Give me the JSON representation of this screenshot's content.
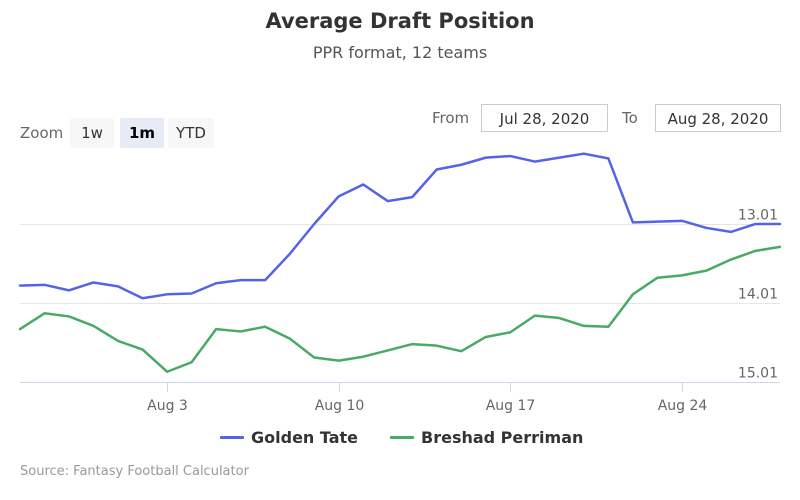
{
  "chart_data": {
    "type": "line",
    "title": "Average Draft Position",
    "subtitle": "PPR format, 12 teams",
    "y_reversed": true,
    "ylim": [
      12.2,
      15.01
    ],
    "y_ticks": [
      {
        "value": 13.01,
        "label": "13.01"
      },
      {
        "value": 14.01,
        "label": "14.01"
      },
      {
        "value": 15.01,
        "label": "15.01"
      }
    ],
    "x_ticks": [
      "Aug 3",
      "Aug 10",
      "Aug 17",
      "Aug 24"
    ],
    "x": [
      "Jul 28",
      "Jul 29",
      "Jul 30",
      "Jul 31",
      "Aug 1",
      "Aug 2",
      "Aug 3",
      "Aug 4",
      "Aug 5",
      "Aug 6",
      "Aug 7",
      "Aug 8",
      "Aug 9",
      "Aug 10",
      "Aug 11",
      "Aug 12",
      "Aug 13",
      "Aug 14",
      "Aug 15",
      "Aug 16",
      "Aug 17",
      "Aug 18",
      "Aug 19",
      "Aug 20",
      "Aug 21",
      "Aug 22",
      "Aug 23",
      "Aug 24",
      "Aug 25",
      "Aug 26",
      "Aug 27",
      "Aug 28"
    ],
    "series": [
      {
        "name": "Golden Tate",
        "color": "#5563e6",
        "values": [
          13.79,
          13.78,
          13.85,
          13.75,
          13.8,
          13.95,
          13.9,
          13.89,
          13.76,
          13.72,
          13.72,
          13.39,
          13.01,
          12.66,
          12.51,
          12.72,
          12.67,
          12.32,
          12.26,
          12.17,
          12.15,
          12.22,
          12.17,
          12.12,
          12.18,
          12.99,
          12.98,
          12.97,
          13.06,
          13.11,
          13.01,
          13.01
        ]
      },
      {
        "name": "Breshad Perriman",
        "color": "#49a965",
        "values": [
          14.34,
          14.14,
          14.18,
          14.3,
          14.49,
          14.6,
          14.88,
          14.76,
          14.34,
          14.37,
          14.31,
          14.46,
          14.7,
          14.74,
          14.69,
          14.61,
          14.53,
          14.55,
          14.62,
          14.44,
          14.38,
          14.17,
          14.2,
          14.3,
          14.31,
          13.9,
          13.69,
          13.66,
          13.6,
          13.46,
          13.35,
          13.3
        ]
      }
    ],
    "legend_position": "bottom",
    "grid": true
  },
  "range_selector": {
    "zoom_label": "Zoom",
    "buttons": [
      {
        "label": "1w",
        "active": false
      },
      {
        "label": "1m",
        "active": true
      },
      {
        "label": "YTD",
        "active": false
      }
    ],
    "from_label": "From",
    "from_value": "Jul 28, 2020",
    "to_label": "To",
    "to_value": "Aug 28, 2020"
  },
  "credits": "Source: Fantasy Football Calculator",
  "colors": {
    "grid": "#e6e6e6",
    "axis": "#ccd6eb",
    "tick_text": "#666666"
  }
}
